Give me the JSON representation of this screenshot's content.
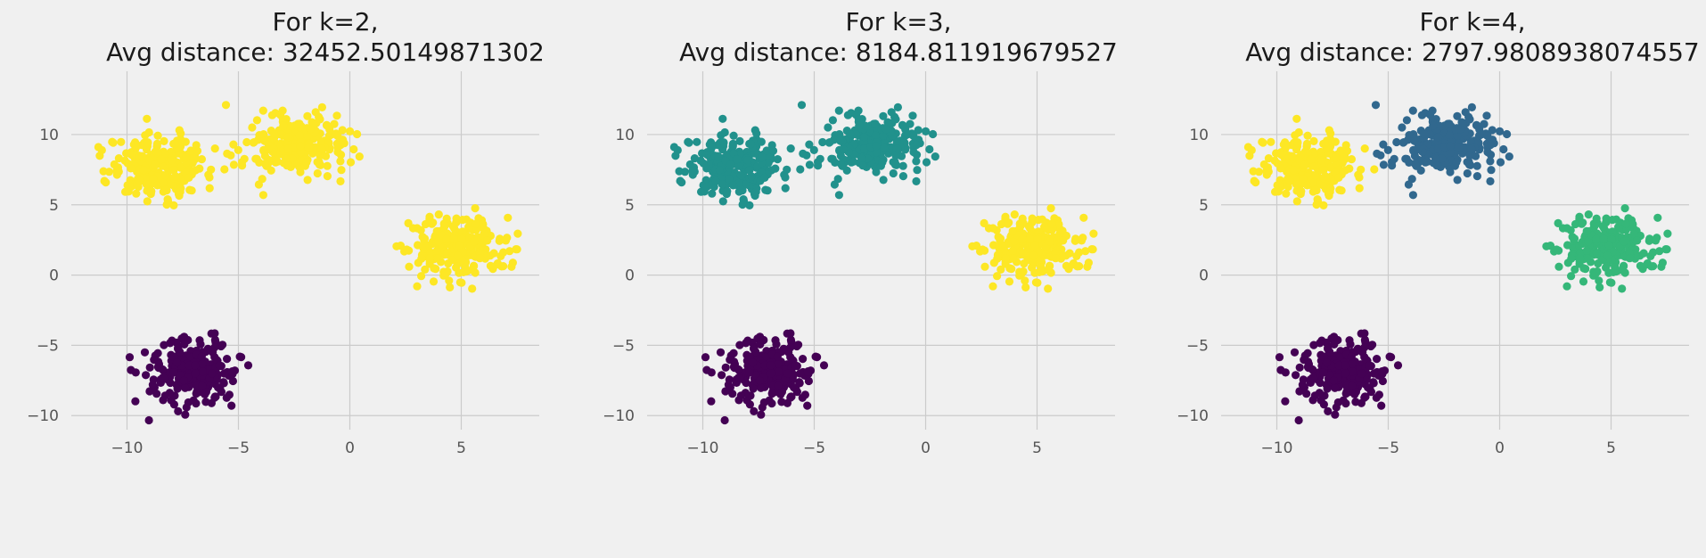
{
  "chart_data": [
    {
      "type": "scatter",
      "title_line1": "For k=2,",
      "title_line2": "Avg distance: 32452.50149871302",
      "xlabel": "",
      "ylabel": "",
      "xlim": [
        -12.5,
        8.5
      ],
      "ylim": [
        -11,
        14.5
      ],
      "xticks": [
        -10,
        -5,
        0,
        5
      ],
      "yticks": [
        -10,
        -5,
        0,
        5,
        10
      ],
      "grid": true,
      "clusters": [
        {
          "center": [
            -8.5,
            7.8
          ],
          "spread": [
            1.1,
            1.1
          ],
          "count": 260,
          "color": "#fde725"
        },
        {
          "center": [
            -2.5,
            9.2
          ],
          "spread": [
            1.1,
            1.1
          ],
          "count": 260,
          "color": "#fde725"
        },
        {
          "center": [
            4.8,
            2.0
          ],
          "spread": [
            1.1,
            1.1
          ],
          "count": 260,
          "color": "#fde725"
        },
        {
          "center": [
            -7.0,
            -6.8
          ],
          "spread": [
            1.0,
            1.1
          ],
          "count": 260,
          "color": "#440154"
        }
      ]
    },
    {
      "type": "scatter",
      "title_line1": "For k=3,",
      "title_line2": "Avg distance: 8184.811919679527",
      "xlabel": "",
      "ylabel": "",
      "xlim": [
        -12.5,
        8.5
      ],
      "ylim": [
        -11,
        14.5
      ],
      "xticks": [
        -10,
        -5,
        0,
        5
      ],
      "yticks": [
        -10,
        -5,
        0,
        5,
        10
      ],
      "grid": true,
      "clusters": [
        {
          "center": [
            -8.5,
            7.8
          ],
          "spread": [
            1.1,
            1.1
          ],
          "count": 260,
          "color": "#21918c"
        },
        {
          "center": [
            -2.5,
            9.2
          ],
          "spread": [
            1.1,
            1.1
          ],
          "count": 260,
          "color": "#21918c"
        },
        {
          "center": [
            4.8,
            2.0
          ],
          "spread": [
            1.1,
            1.1
          ],
          "count": 260,
          "color": "#fde725"
        },
        {
          "center": [
            -7.0,
            -6.8
          ],
          "spread": [
            1.0,
            1.1
          ],
          "count": 260,
          "color": "#440154"
        }
      ]
    },
    {
      "type": "scatter",
      "title_line1": "For k=4,",
      "title_line2": "Avg distance: 2797.9808938074557",
      "xlabel": "",
      "ylabel": "",
      "xlim": [
        -12.5,
        8.5
      ],
      "ylim": [
        -11,
        14.5
      ],
      "xticks": [
        -10,
        -5,
        0,
        5
      ],
      "yticks": [
        -10,
        -5,
        0,
        5,
        10
      ],
      "grid": true,
      "clusters": [
        {
          "center": [
            -8.5,
            7.8
          ],
          "spread": [
            1.1,
            1.1
          ],
          "count": 260,
          "color": "#fde725"
        },
        {
          "center": [
            -2.5,
            9.2
          ],
          "spread": [
            1.1,
            1.1
          ],
          "count": 260,
          "color": "#31688e"
        },
        {
          "center": [
            4.8,
            2.0
          ],
          "spread": [
            1.1,
            1.1
          ],
          "count": 260,
          "color": "#35b779"
        },
        {
          "center": [
            -7.0,
            -6.8
          ],
          "spread": [
            1.0,
            1.1
          ],
          "count": 260,
          "color": "#440154"
        }
      ]
    }
  ]
}
